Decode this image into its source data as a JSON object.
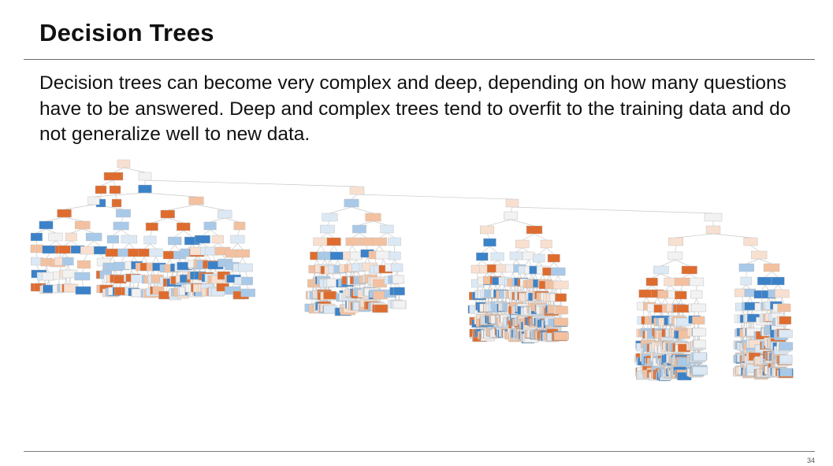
{
  "slide": {
    "title": "Decision Trees",
    "body": "Decision trees can become very complex and deep, depending on how many questions have to be answered. Deep and complex trees tend to overfit to the training data and do not generalize well to new data.",
    "page_number": "34"
  },
  "tree_figure": {
    "node_colors": {
      "orange_dark": "#de6c2f",
      "orange_light": "#f3c1a0",
      "orange_pale": "#f8e0d0",
      "blue_dark": "#3b82c9",
      "blue_light": "#a9c9e8",
      "blue_pale": "#dce9f5",
      "neutral": "#f2f2f2"
    }
  }
}
